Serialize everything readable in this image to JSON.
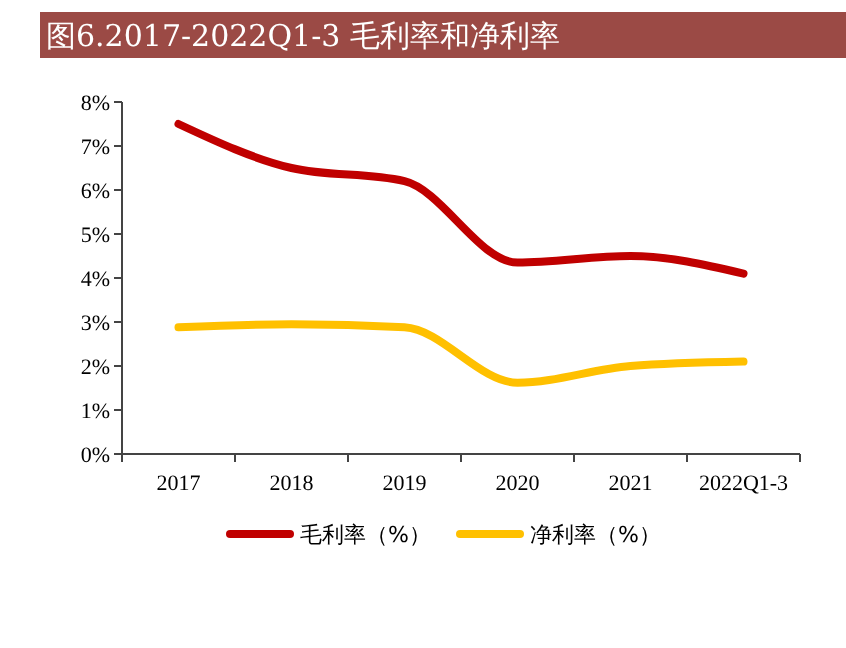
{
  "chart_data": {
    "type": "line",
    "title": "图6.2017-2022Q1-3 毛利率和净利率",
    "categories": [
      "2017",
      "2018",
      "2019",
      "2020",
      "2021",
      "2022Q1-3"
    ],
    "series": [
      {
        "name": "毛利率（%）",
        "color": "#c00000",
        "values": [
          7.5,
          6.5,
          6.2,
          4.35,
          4.5,
          4.1
        ]
      },
      {
        "name": "净利率（%）",
        "color": "#ffc000",
        "values": [
          2.88,
          2.95,
          2.88,
          1.62,
          2.0,
          2.1
        ]
      }
    ],
    "ylim": [
      0,
      8
    ],
    "yticks": [
      {
        "value": 0,
        "label": "0%"
      },
      {
        "value": 1,
        "label": "1%"
      },
      {
        "value": 2,
        "label": "2%"
      },
      {
        "value": 3,
        "label": "3%"
      },
      {
        "value": 4,
        "label": "4%"
      },
      {
        "value": 5,
        "label": "5%"
      },
      {
        "value": 6,
        "label": "6%"
      },
      {
        "value": 7,
        "label": "7%"
      },
      {
        "value": 8,
        "label": "8%"
      }
    ],
    "grid": false,
    "legend": "bottom",
    "marker": "none",
    "line_style": "solid"
  }
}
